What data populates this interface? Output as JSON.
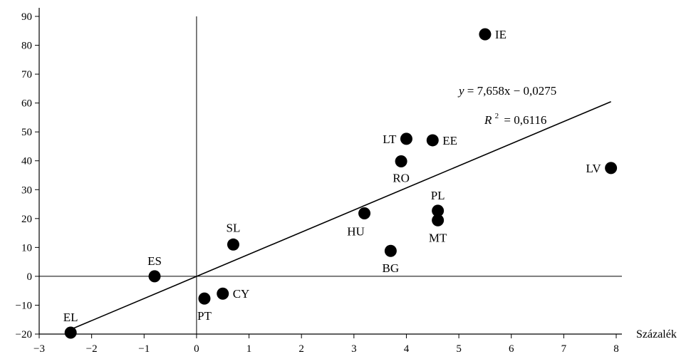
{
  "chart_data": {
    "type": "scatter",
    "xlabel": "Százalék",
    "ylabel": "",
    "xlim": [
      -3,
      8
    ],
    "ylim": [
      -20,
      90
    ],
    "xticks": [
      -3,
      -2,
      -1,
      0,
      1,
      2,
      3,
      4,
      5,
      6,
      7,
      8
    ],
    "yticks": [
      -20,
      -10,
      0,
      10,
      20,
      30,
      40,
      50,
      60,
      70,
      80,
      90
    ],
    "points": [
      {
        "label": "EL",
        "x": -2.4,
        "y": -19.5
      },
      {
        "label": "ES",
        "x": -0.8,
        "y": 0.0
      },
      {
        "label": "PT",
        "x": 0.15,
        "y": -7.7
      },
      {
        "label": "CY",
        "x": 0.5,
        "y": -6.0
      },
      {
        "label": "SL",
        "x": 0.7,
        "y": 11.0
      },
      {
        "label": "HU",
        "x": 3.2,
        "y": 21.8
      },
      {
        "label": "BG",
        "x": 3.7,
        "y": 8.8
      },
      {
        "label": "RO",
        "x": 3.9,
        "y": 39.8
      },
      {
        "label": "LT",
        "x": 4.0,
        "y": 47.6
      },
      {
        "label": "EE",
        "x": 4.5,
        "y": 47.1
      },
      {
        "label": "PL",
        "x": 4.6,
        "y": 22.7
      },
      {
        "label": "MT",
        "x": 4.6,
        "y": 19.4
      },
      {
        "label": "IE",
        "x": 5.5,
        "y": 83.8
      },
      {
        "label": "LV",
        "x": 7.9,
        "y": 37.5
      }
    ],
    "trendline": {
      "slope": 7.658,
      "intercept": -0.0275,
      "x_range": [
        -2.4,
        7.9
      ],
      "equation_text": "= 7,658x − 0,0275",
      "equation_var": "y",
      "r2_text": "= 0,6116",
      "r2_var": "R",
      "r2_sup": "2"
    },
    "grid": false,
    "legend": "none"
  }
}
